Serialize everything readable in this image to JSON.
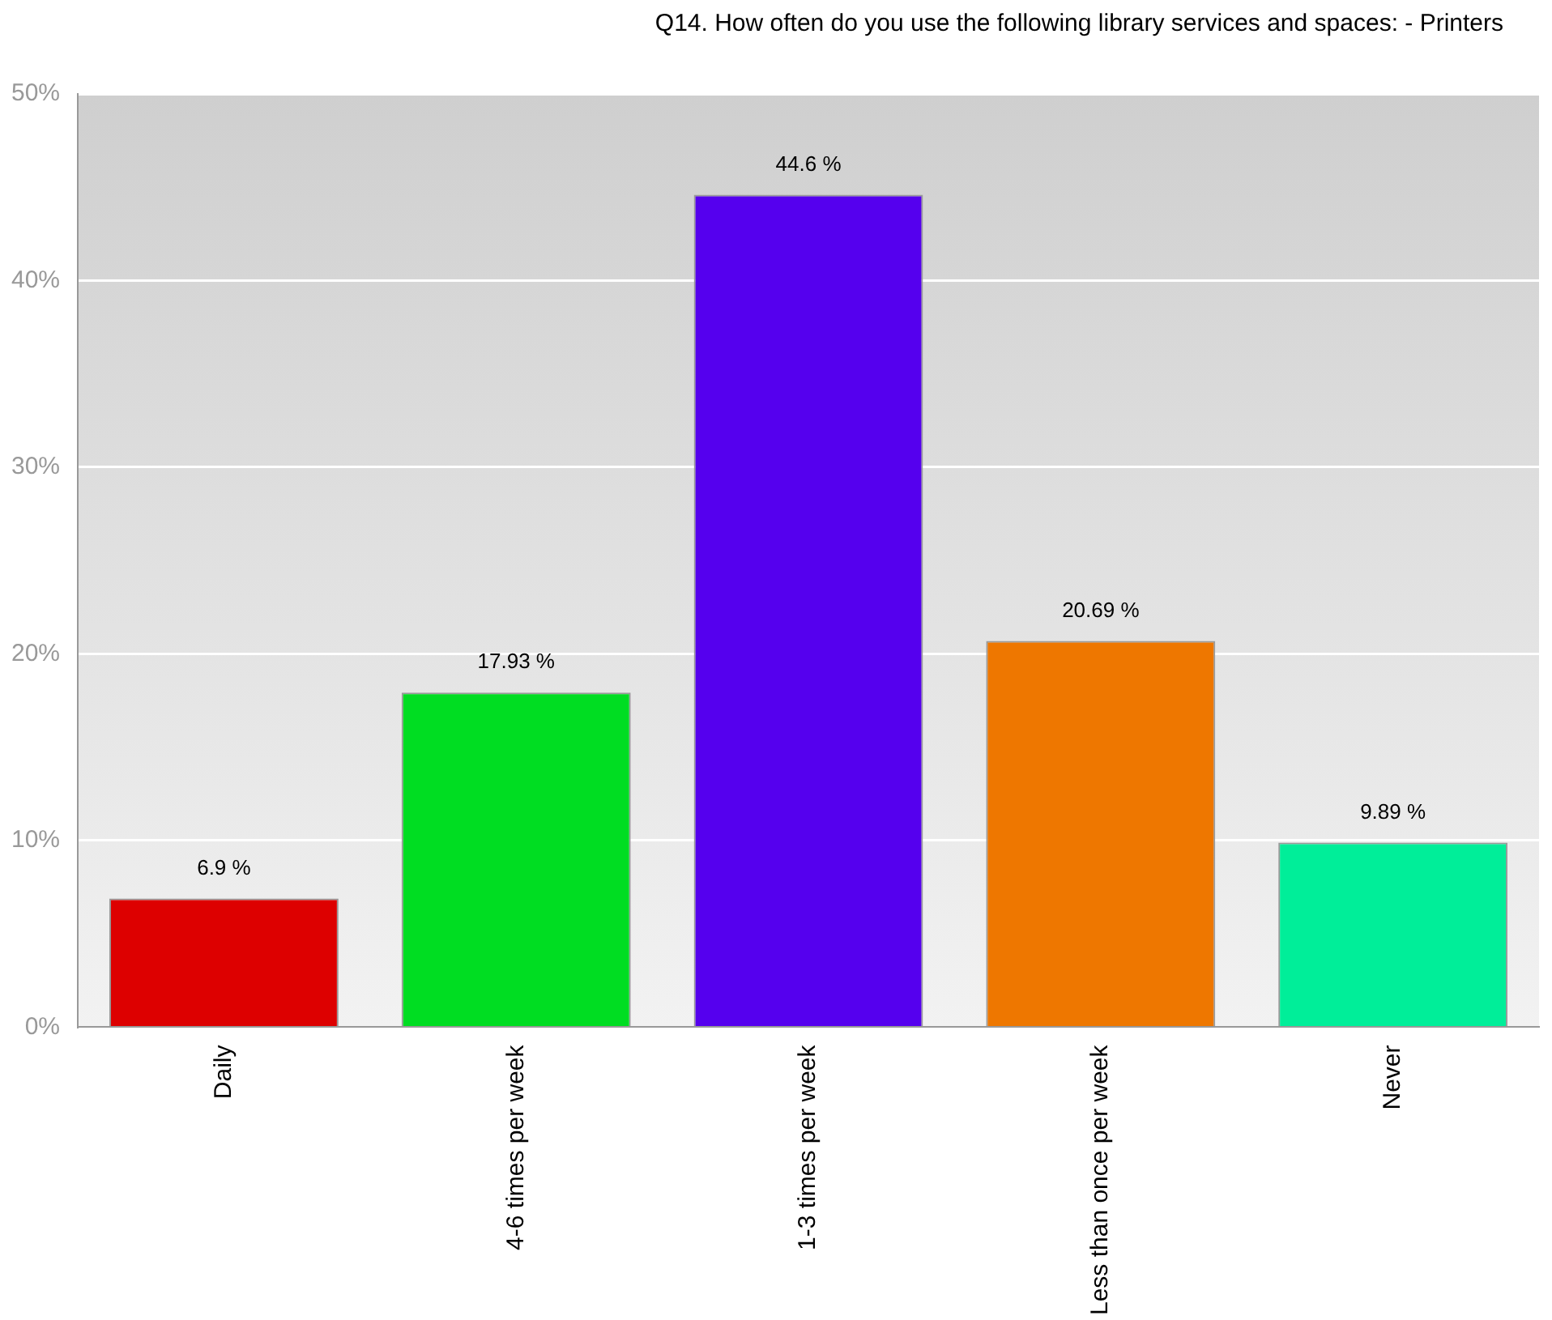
{
  "chart_data": {
    "type": "bar",
    "title": "Q14. How often do you use the following library services and spaces: -  Printers",
    "categories": [
      "Daily",
      "4-6 times per week",
      "1-3 times per week",
      "Less than once per week",
      "Never"
    ],
    "values": [
      6.9,
      17.93,
      44.6,
      20.69,
      9.89
    ],
    "colors": [
      "#dd0000",
      "#00dd22",
      "#5500ee",
      "#ee7700",
      "#00ee99"
    ],
    "value_labels": [
      "6.9 %",
      "17.93 %",
      "44.6 %",
      "20.69 %",
      "9.89 %"
    ],
    "ylim": [
      0,
      50
    ],
    "yticks": [
      {
        "value": 0,
        "label": "0%"
      },
      {
        "value": 10,
        "label": "10%"
      },
      {
        "value": 20,
        "label": "20%"
      },
      {
        "value": 30,
        "label": "30%"
      },
      {
        "value": 40,
        "label": "40%"
      },
      {
        "value": 50,
        "label": "50%"
      }
    ],
    "grid": "y"
  }
}
